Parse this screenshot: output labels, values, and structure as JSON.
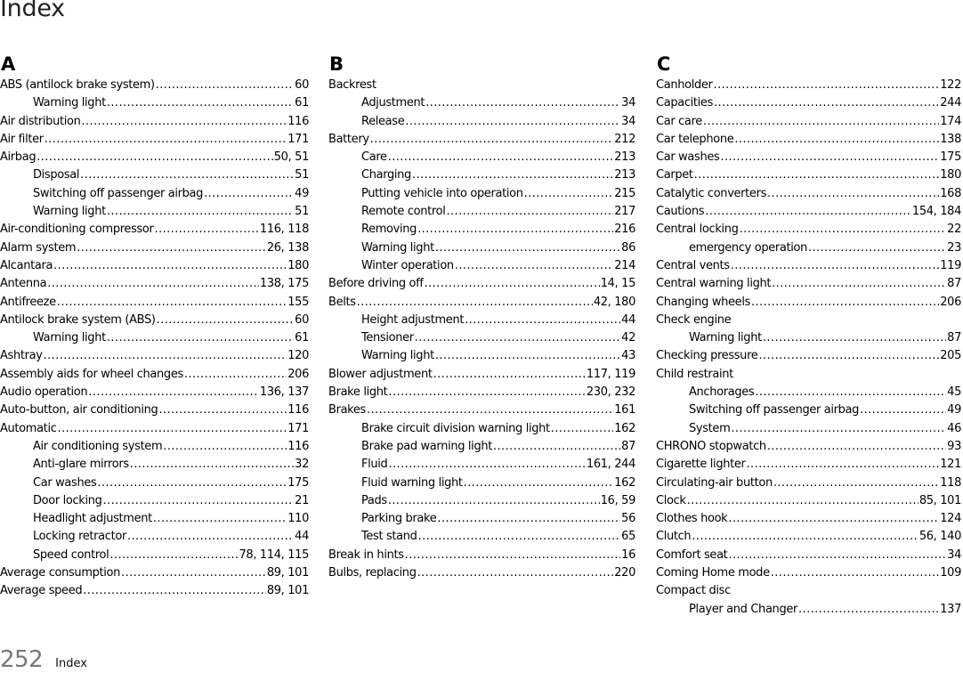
{
  "header": {
    "title": "Index"
  },
  "columns": [
    {
      "letter": "A",
      "entries": [
        {
          "t": "ABS (antilock brake system)",
          "p": "60"
        },
        {
          "t": "Warning light",
          "p": "61",
          "sub": true
        },
        {
          "t": "Air distribution",
          "p": "116"
        },
        {
          "t": "Air filter",
          "p": "171"
        },
        {
          "t": "Airbag",
          "p": "50, 51"
        },
        {
          "t": "Disposal",
          "p": "51",
          "sub": true
        },
        {
          "t": "Switching off passenger airbag",
          "p": "49",
          "sub": true
        },
        {
          "t": "Warning light",
          "p": "51",
          "sub": true
        },
        {
          "t": "Air-conditioning compressor",
          "p": "116, 118"
        },
        {
          "t": "Alarm system",
          "p": "26, 138"
        },
        {
          "t": "Alcantara",
          "p": "180"
        },
        {
          "t": "Antenna",
          "p": "138, 175"
        },
        {
          "t": "Antifreeze",
          "p": "155"
        },
        {
          "t": "Antilock brake system (ABS)",
          "p": "60"
        },
        {
          "t": "Warning light",
          "p": "61",
          "sub": true
        },
        {
          "t": "Ashtray",
          "p": "120"
        },
        {
          "t": "Assembly aids for wheel changes",
          "p": "206"
        },
        {
          "t": "Audio operation",
          "p": "136, 137"
        },
        {
          "t": "Auto-button, air conditioning",
          "p": "116"
        },
        {
          "t": "Automatic",
          "p": "171"
        },
        {
          "t": "Air conditioning system",
          "p": "116",
          "sub": true
        },
        {
          "t": "Anti-glare mirrors",
          "p": "32",
          "sub": true
        },
        {
          "t": "Car washes",
          "p": "175",
          "sub": true
        },
        {
          "t": "Door locking",
          "p": "21",
          "sub": true
        },
        {
          "t": "Headlight adjustment",
          "p": "110",
          "sub": true
        },
        {
          "t": "Locking retractor",
          "p": "44",
          "sub": true
        },
        {
          "t": "Speed control",
          "p": "78, 114, 115",
          "sub": true
        },
        {
          "t": "Average consumption",
          "p": "89, 101"
        },
        {
          "t": "Average speed",
          "p": "89, 101"
        }
      ]
    },
    {
      "letter": "B",
      "entries": [
        {
          "t": "Backrest",
          "p": ""
        },
        {
          "t": "Adjustment",
          "p": "34",
          "sub": true
        },
        {
          "t": "Release",
          "p": "34",
          "sub": true
        },
        {
          "t": "Battery",
          "p": "212"
        },
        {
          "t": "Care",
          "p": "213",
          "sub": true
        },
        {
          "t": "Charging",
          "p": "213",
          "sub": true
        },
        {
          "t": "Putting vehicle into operation",
          "p": "215",
          "sub": true
        },
        {
          "t": "Remote control",
          "p": "217",
          "sub": true
        },
        {
          "t": "Removing",
          "p": "216",
          "sub": true
        },
        {
          "t": "Warning light",
          "p": "86",
          "sub": true
        },
        {
          "t": "Winter operation",
          "p": "214",
          "sub": true
        },
        {
          "t": "Before driving off",
          "p": "14, 15"
        },
        {
          "t": "Belts",
          "p": "42, 180"
        },
        {
          "t": "Height adjustment",
          "p": "44",
          "sub": true
        },
        {
          "t": "Tensioner",
          "p": "42",
          "sub": true
        },
        {
          "t": "Warning light",
          "p": "43",
          "sub": true
        },
        {
          "t": "Blower adjustment",
          "p": "117, 119"
        },
        {
          "t": "Brake light",
          "p": "230, 232"
        },
        {
          "t": "Brakes",
          "p": "161"
        },
        {
          "t": "Brake circuit division warning light",
          "p": "162",
          "sub": true
        },
        {
          "t": "Brake pad warning light",
          "p": "87",
          "sub": true
        },
        {
          "t": "Fluid",
          "p": "161, 244",
          "sub": true
        },
        {
          "t": "Fluid warning light",
          "p": "162",
          "sub": true
        },
        {
          "t": "Pads",
          "p": "16, 59",
          "sub": true
        },
        {
          "t": "Parking brake",
          "p": "56",
          "sub": true
        },
        {
          "t": "Test stand",
          "p": "65",
          "sub": true
        },
        {
          "t": "Break in hints",
          "p": "16"
        },
        {
          "t": "Bulbs, replacing",
          "p": "220"
        }
      ]
    },
    {
      "letter": "C",
      "entries": [
        {
          "t": "Canholder",
          "p": "122"
        },
        {
          "t": "Capacities",
          "p": "244"
        },
        {
          "t": "Car care",
          "p": "174"
        },
        {
          "t": "Car telephone",
          "p": "138"
        },
        {
          "t": "Car washes",
          "p": "175"
        },
        {
          "t": "Carpet",
          "p": "180"
        },
        {
          "t": "Catalytic converters",
          "p": "168"
        },
        {
          "t": "Cautions",
          "p": "154, 184"
        },
        {
          "t": "Central locking",
          "p": "22"
        },
        {
          "t": "emergency operation",
          "p": "23",
          "sub": true
        },
        {
          "t": "Central vents",
          "p": "119"
        },
        {
          "t": "Central warning light",
          "p": "87"
        },
        {
          "t": "Changing wheels",
          "p": "206"
        },
        {
          "t": "Check engine",
          "p": ""
        },
        {
          "t": "Warning light",
          "p": "87",
          "sub": true
        },
        {
          "t": "Checking pressure",
          "p": "205"
        },
        {
          "t": "Child restraint",
          "p": ""
        },
        {
          "t": "Anchorages",
          "p": "45",
          "sub": true
        },
        {
          "t": "Switching off passenger airbag",
          "p": "49",
          "sub": true
        },
        {
          "t": "System",
          "p": "46",
          "sub": true
        },
        {
          "t": "CHRONO stopwatch",
          "p": "93"
        },
        {
          "t": "Cigarette lighter",
          "p": "121"
        },
        {
          "t": "Circulating-air button",
          "p": "118"
        },
        {
          "t": "Clock",
          "p": "85, 101"
        },
        {
          "t": "Clothes hook",
          "p": "124"
        },
        {
          "t": "Clutch",
          "p": "56, 140"
        },
        {
          "t": "Comfort seat",
          "p": "34"
        },
        {
          "t": "Coming Home mode",
          "p": "109"
        },
        {
          "t": "Compact disc",
          "p": ""
        },
        {
          "t": "Player and Changer",
          "p": "137",
          "sub": true
        }
      ]
    }
  ],
  "footer": {
    "page_number": "252",
    "section": "Index"
  }
}
